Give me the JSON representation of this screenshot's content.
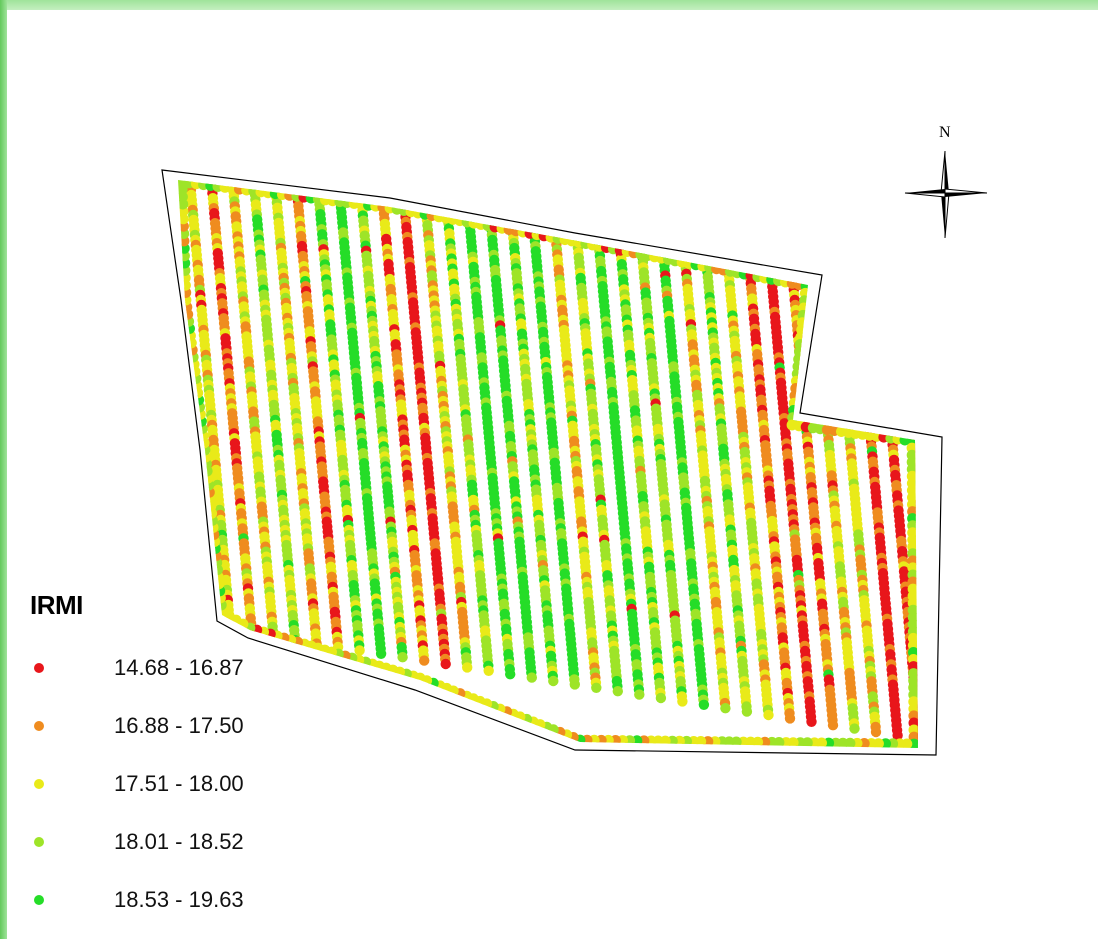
{
  "map": {
    "north_label": "N",
    "classes": [
      {
        "label": "14.68 - 16.87",
        "color": "#e8161b"
      },
      {
        "label": "16.88 - 17.50",
        "color": "#ef8c1f"
      },
      {
        "label": "17.51 - 18.00",
        "color": "#e9ea19"
      },
      {
        "label": "18.01 - 18.52",
        "color": "#9ee428"
      },
      {
        "label": "18.53 - 19.63",
        "color": "#25dd28"
      }
    ]
  },
  "legend": {
    "title": "IRMI"
  }
}
